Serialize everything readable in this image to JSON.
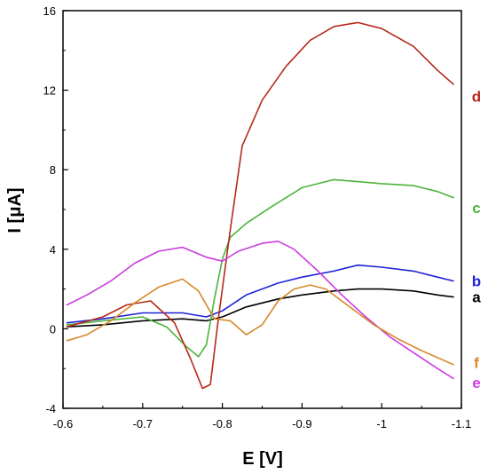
{
  "chart_data": {
    "type": "line",
    "title": "",
    "xlabel": "E [V]",
    "ylabel": "I [μA]",
    "xlim": [
      -0.6,
      -1.1
    ],
    "ylim": [
      -4,
      16
    ],
    "x_reversed": true,
    "grid": false,
    "x_ticks": [
      -0.6,
      -0.7,
      -0.8,
      -0.9,
      -1.0,
      -1.1
    ],
    "x_tick_labels": [
      "-0.6",
      "-0.7",
      "-0.8",
      "-0.9",
      "-1",
      "-1.1"
    ],
    "y_ticks": [
      -4,
      0,
      4,
      8,
      12,
      16
    ],
    "y_tick_labels": [
      "-4",
      "0",
      "4",
      "8",
      "12",
      "16"
    ],
    "series": [
      {
        "name": "a",
        "color": "#000000",
        "x": [
          -0.605,
          -0.65,
          -0.7,
          -0.75,
          -0.78,
          -0.8,
          -0.83,
          -0.87,
          -0.9,
          -0.94,
          -0.97,
          -1.0,
          -1.04,
          -1.07,
          -1.09
        ],
        "y": [
          0.1,
          0.2,
          0.4,
          0.5,
          0.4,
          0.6,
          1.1,
          1.5,
          1.7,
          1.9,
          2.0,
          2.0,
          1.9,
          1.7,
          1.6
        ]
      },
      {
        "name": "b",
        "color": "#1f22d6",
        "x": [
          -0.605,
          -0.65,
          -0.7,
          -0.75,
          -0.78,
          -0.8,
          -0.83,
          -0.87,
          -0.9,
          -0.94,
          -0.97,
          -1.0,
          -1.04,
          -1.07,
          -1.09
        ],
        "y": [
          0.3,
          0.5,
          0.8,
          0.8,
          0.6,
          0.9,
          1.7,
          2.3,
          2.6,
          2.9,
          3.2,
          3.1,
          2.9,
          2.6,
          2.4
        ]
      },
      {
        "name": "c",
        "color": "#4db33d",
        "x": [
          -0.605,
          -0.65,
          -0.7,
          -0.73,
          -0.755,
          -0.77,
          -0.78,
          -0.79,
          -0.8,
          -0.81,
          -0.83,
          -0.86,
          -0.9,
          -0.94,
          -0.97,
          -1.0,
          -1.04,
          -1.07,
          -1.09
        ],
        "y": [
          0.2,
          0.4,
          0.6,
          0.1,
          -0.9,
          -1.4,
          -0.8,
          1.5,
          3.5,
          4.6,
          5.3,
          6.1,
          7.1,
          7.5,
          7.4,
          7.3,
          7.2,
          6.9,
          6.6
        ],
        "label_y": 6.1
      },
      {
        "name": "d",
        "color": "#b5291a",
        "x": [
          -0.605,
          -0.65,
          -0.68,
          -0.71,
          -0.74,
          -0.76,
          -0.775,
          -0.785,
          -0.795,
          -0.81,
          -0.825,
          -0.85,
          -0.88,
          -0.91,
          -0.94,
          -0.97,
          -1.0,
          -1.04,
          -1.07,
          -1.09
        ],
        "y": [
          0.1,
          0.6,
          1.2,
          1.4,
          0.3,
          -1.5,
          -3.0,
          -2.8,
          0.5,
          5.0,
          9.2,
          11.5,
          13.2,
          14.5,
          15.2,
          15.4,
          15.1,
          14.2,
          13.0,
          12.3
        ],
        "label_y": 11.7
      },
      {
        "name": "e",
        "color": "#cc3be0",
        "x": [
          -0.605,
          -0.63,
          -0.66,
          -0.69,
          -0.72,
          -0.75,
          -0.78,
          -0.8,
          -0.82,
          -0.85,
          -0.87,
          -0.89,
          -0.92,
          -0.95,
          -0.98,
          -1.01,
          -1.04,
          -1.07,
          -1.09
        ],
        "y": [
          1.2,
          1.7,
          2.4,
          3.3,
          3.9,
          4.1,
          3.6,
          3.4,
          3.9,
          4.3,
          4.4,
          4.0,
          2.9,
          1.7,
          0.6,
          -0.4,
          -1.2,
          -2.0,
          -2.5
        ],
        "label_y": -2.7
      },
      {
        "name": "f",
        "color": "#d6892b",
        "x": [
          -0.605,
          -0.63,
          -0.66,
          -0.69,
          -0.72,
          -0.75,
          -0.77,
          -0.79,
          -0.81,
          -0.83,
          -0.85,
          -0.87,
          -0.89,
          -0.91,
          -0.93,
          -0.96,
          -0.99,
          -1.02,
          -1.05,
          -1.09
        ],
        "y": [
          -0.6,
          -0.3,
          0.4,
          1.3,
          2.1,
          2.5,
          1.9,
          0.5,
          0.4,
          -0.3,
          0.2,
          1.4,
          2.0,
          2.2,
          2.0,
          1.1,
          0.2,
          -0.5,
          -1.1,
          -1.8
        ],
        "label_y": -1.7
      }
    ]
  }
}
